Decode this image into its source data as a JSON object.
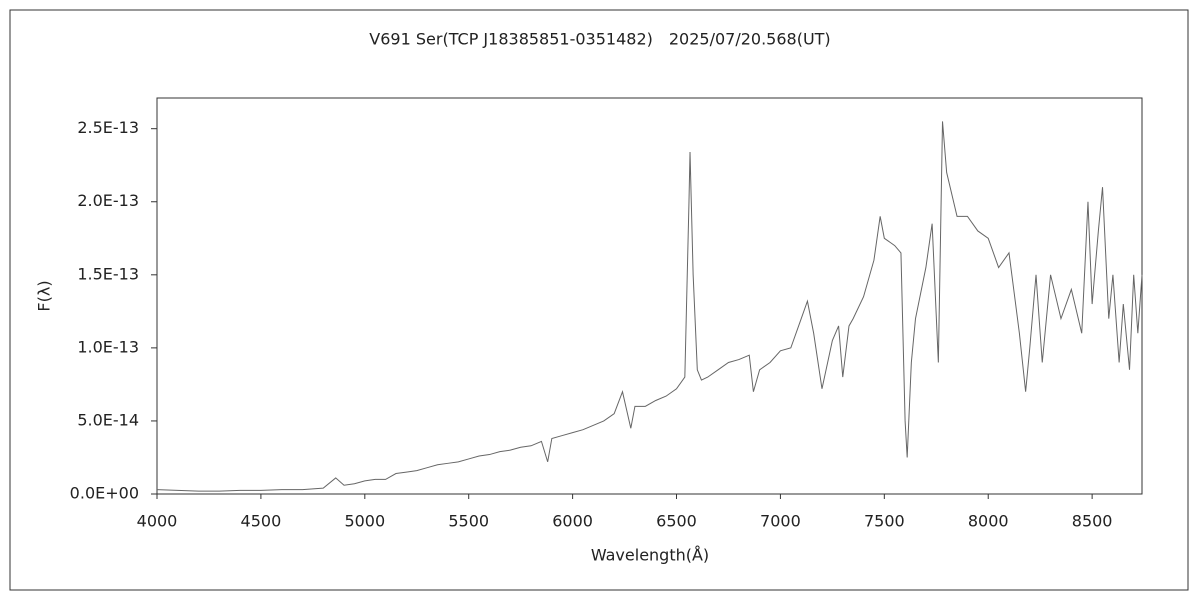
{
  "chart_data": {
    "type": "line",
    "title": "V691 Ser(TCP J18385851-0351482)　2025/07/20.568(UT)",
    "x_label": "Wavelength(Å)",
    "y_label": "F(λ)",
    "x": [
      4000,
      4100,
      4200,
      4300,
      4400,
      4500,
      4600,
      4700,
      4800,
      4860,
      4900,
      4950,
      5000,
      5050,
      5100,
      5150,
      5200,
      5250,
      5300,
      5350,
      5400,
      5450,
      5500,
      5550,
      5600,
      5650,
      5700,
      5750,
      5800,
      5850,
      5880,
      5900,
      5950,
      6000,
      6050,
      6100,
      6150,
      6200,
      6240,
      6280,
      6300,
      6350,
      6400,
      6450,
      6500,
      6540,
      6560,
      6565,
      6580,
      6600,
      6620,
      6650,
      6700,
      6750,
      6800,
      6850,
      6870,
      6900,
      6950,
      7000,
      7050,
      7100,
      7130,
      7160,
      7200,
      7250,
      7280,
      7300,
      7330,
      7350,
      7400,
      7450,
      7480,
      7500,
      7550,
      7580,
      7600,
      7610,
      7630,
      7650,
      7700,
      7730,
      7760,
      7780,
      7800,
      7850,
      7900,
      7950,
      8000,
      8050,
      8100,
      8150,
      8180,
      8200,
      8230,
      8260,
      8300,
      8350,
      8400,
      8450,
      8480,
      8500,
      8530,
      8550,
      8580,
      8600,
      8630,
      8650,
      8680,
      8700,
      8720,
      8740
    ],
    "series": [
      {
        "name": "F(λ)",
        "color": "#666666",
        "values": [
          3e-15,
          2.5e-15,
          2e-15,
          2e-15,
          2.5e-15,
          2.5e-15,
          3e-15,
          3e-15,
          4e-15,
          1.1e-14,
          6e-15,
          7e-15,
          9e-15,
          1e-14,
          1e-14,
          1.4e-14,
          1.5e-14,
          1.6e-14,
          1.8e-14,
          2e-14,
          2.1e-14,
          2.2e-14,
          2.4e-14,
          2.6e-14,
          2.7e-14,
          2.9e-14,
          3e-14,
          3.2e-14,
          3.3e-14,
          3.6e-14,
          2.2e-14,
          3.8e-14,
          4e-14,
          4.2e-14,
          4.4e-14,
          4.7e-14,
          5e-14,
          5.5e-14,
          7e-14,
          4.5e-14,
          6e-14,
          6e-14,
          6.4e-14,
          6.7e-14,
          7.2e-14,
          8e-14,
          2e-13,
          2.34e-13,
          1.5e-13,
          8.5e-14,
          7.8e-14,
          8e-14,
          8.5e-14,
          9e-14,
          9.2e-14,
          9.5e-14,
          7e-14,
          8.5e-14,
          9e-14,
          9.8e-14,
          1e-13,
          1.2e-13,
          1.32e-13,
          1.1e-13,
          7.2e-14,
          1.05e-13,
          1.15e-13,
          8e-14,
          1.15e-13,
          1.2e-13,
          1.35e-13,
          1.6e-13,
          1.9e-13,
          1.75e-13,
          1.7e-13,
          1.65e-13,
          5e-14,
          2.5e-14,
          9e-14,
          1.2e-13,
          1.55e-13,
          1.85e-13,
          9e-14,
          2.55e-13,
          2.2e-13,
          1.9e-13,
          1.9e-13,
          1.8e-13,
          1.75e-13,
          1.55e-13,
          1.65e-13,
          1.1e-13,
          7e-14,
          1e-13,
          1.5e-13,
          9e-14,
          1.5e-13,
          1.2e-13,
          1.4e-13,
          1.1e-13,
          2e-13,
          1.3e-13,
          1.8e-13,
          2.1e-13,
          1.2e-13,
          1.5e-13,
          9e-14,
          1.3e-13,
          8.5e-14,
          1.5e-13,
          1.1e-13,
          1.5e-13
        ]
      }
    ],
    "xlim": [
      4000,
      8740
    ],
    "ylim": [
      0,
      2.71e-13
    ],
    "xticks": [
      4000,
      4500,
      5000,
      5500,
      6000,
      6500,
      7000,
      7500,
      8000,
      8500
    ],
    "yticks": [
      {
        "value": 0,
        "label": "0.0E+00"
      },
      {
        "value": 5e-14,
        "label": "5.0E-14"
      },
      {
        "value": 1e-13,
        "label": "1.0E-13"
      },
      {
        "value": 1.5e-13,
        "label": "1.5E-13"
      },
      {
        "value": 2e-13,
        "label": "2.0E-13"
      },
      {
        "value": 2.5e-13,
        "label": "2.5E-13"
      }
    ],
    "grid": false
  }
}
